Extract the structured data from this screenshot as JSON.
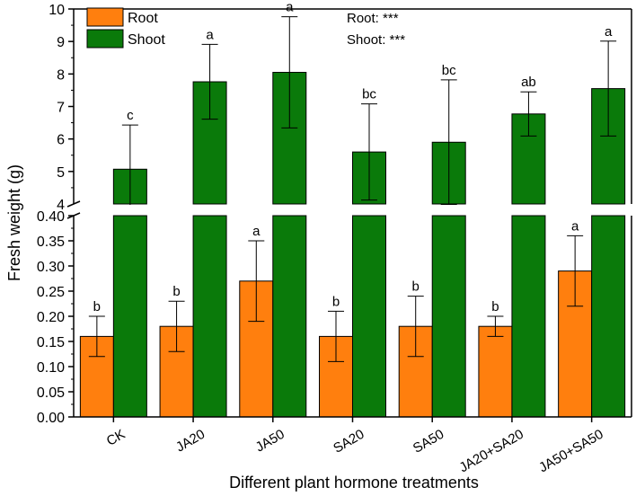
{
  "chart_data": {
    "type": "bar",
    "title": "",
    "xlabel": "Different plant hormone treatments",
    "ylabel": "Fresh weight (g)",
    "categories": [
      "CK",
      "JA20",
      "JA50",
      "SA20",
      "SA50",
      "JA20+SA20",
      "JA50+SA50"
    ],
    "axis_break": true,
    "y_lower": {
      "ylim": [
        0,
        0.4
      ],
      "ticks": [
        "0.00",
        "0.05",
        "0.10",
        "0.15",
        "0.20",
        "0.25",
        "0.30",
        "0.35",
        "0.40"
      ]
    },
    "y_upper": {
      "ylim": [
        4,
        10
      ],
      "ticks": [
        "4",
        "5",
        "6",
        "7",
        "8",
        "9",
        "10"
      ]
    },
    "series": [
      {
        "name": "Root",
        "color": "#FF7F0E",
        "values": [
          0.16,
          0.18,
          0.27,
          0.16,
          0.18,
          0.18,
          0.29
        ],
        "errors": [
          0.04,
          0.05,
          0.08,
          0.05,
          0.06,
          0.02,
          0.07
        ],
        "letters": [
          "b",
          "b",
          "a",
          "b",
          "b",
          "b",
          "a"
        ]
      },
      {
        "name": "Shoot",
        "color": "#0A7A0A",
        "values": [
          5.07,
          7.76,
          8.05,
          5.6,
          5.9,
          6.77,
          7.55
        ],
        "errors": [
          1.36,
          1.15,
          1.71,
          1.48,
          1.92,
          0.68,
          1.46
        ],
        "letters": [
          "c",
          "a",
          "a",
          "bc",
          "bc",
          "ab",
          "a"
        ]
      }
    ],
    "legend": {
      "position": "top-left",
      "items": [
        "Root",
        "Shoot"
      ]
    },
    "annotations": [
      "Root: ***",
      "Shoot: ***"
    ]
  }
}
